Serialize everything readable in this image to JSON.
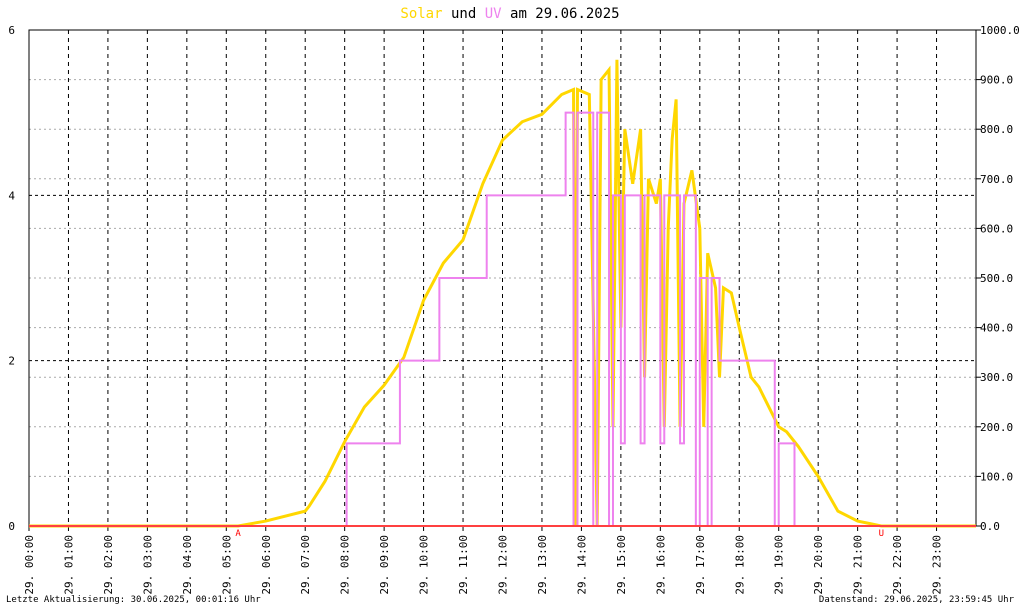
{
  "chart_data": {
    "type": "line",
    "title": {
      "parts": [
        "Solar",
        "und",
        "UV",
        "am 29.06.2025"
      ]
    },
    "xlim": [
      0,
      24
    ],
    "xticks": [
      {
        "value": 0,
        "label": "29. 00:00"
      },
      {
        "value": 1,
        "label": "29. 01:00"
      },
      {
        "value": 2,
        "label": "29. 02:00"
      },
      {
        "value": 3,
        "label": "29. 03:00"
      },
      {
        "value": 4,
        "label": "29. 04:00"
      },
      {
        "value": 5,
        "label": "29. 05:00"
      },
      {
        "value": 6,
        "label": "29. 06:00"
      },
      {
        "value": 7,
        "label": "29. 07:00"
      },
      {
        "value": 8,
        "label": "29. 08:00"
      },
      {
        "value": 9,
        "label": "29. 09:00"
      },
      {
        "value": 10,
        "label": "29. 10:00"
      },
      {
        "value": 11,
        "label": "29. 11:00"
      },
      {
        "value": 12,
        "label": "29. 12:00"
      },
      {
        "value": 13,
        "label": "29. 13:00"
      },
      {
        "value": 14,
        "label": "29. 14:00"
      },
      {
        "value": 15,
        "label": "29. 15:00"
      },
      {
        "value": 16,
        "label": "29. 16:00"
      },
      {
        "value": 17,
        "label": "29. 17:00"
      },
      {
        "value": 18,
        "label": "29. 18:00"
      },
      {
        "value": 19,
        "label": "29. 19:00"
      },
      {
        "value": 20,
        "label": "29. 20:00"
      },
      {
        "value": 21,
        "label": "29. 21:00"
      },
      {
        "value": 22,
        "label": "29. 22:00"
      },
      {
        "value": 23,
        "label": "29. 23:00"
      }
    ],
    "ylim": [
      0,
      6
    ],
    "yticks": [
      0,
      2,
      4,
      6
    ],
    "y2lim": [
      0,
      1000
    ],
    "y2ticks": [
      {
        "value": 0,
        "label": "0.0"
      },
      {
        "value": 100,
        "label": "100.0"
      },
      {
        "value": 200,
        "label": "200.0"
      },
      {
        "value": 300,
        "label": "300.0"
      },
      {
        "value": 400,
        "label": "400.0"
      },
      {
        "value": 500,
        "label": "500.0"
      },
      {
        "value": 600,
        "label": "600.0"
      },
      {
        "value": 700,
        "label": "700.0"
      },
      {
        "value": 800,
        "label": "800.0"
      },
      {
        "value": 900,
        "label": "900.0"
      },
      {
        "value": 1000,
        "label": "1000.0"
      }
    ],
    "grid": true,
    "series": [
      {
        "name": "Solar",
        "color": "#ffd700",
        "axis": "y2",
        "x": [
          0,
          5.3,
          6.0,
          7.0,
          7.1,
          7.5,
          8.0,
          8.5,
          9.0,
          9.5,
          10.0,
          10.5,
          11.0,
          11.5,
          12.0,
          12.5,
          13.0,
          13.5,
          13.8,
          13.85,
          13.9,
          14.2,
          14.4,
          14.5,
          14.7,
          14.8,
          14.9,
          15.0,
          15.1,
          15.3,
          15.5,
          15.6,
          15.7,
          15.9,
          16.0,
          16.1,
          16.2,
          16.3,
          16.4,
          16.5,
          16.6,
          16.8,
          17.0,
          17.1,
          17.2,
          17.4,
          17.5,
          17.6,
          17.8,
          18.0,
          18.3,
          18.5,
          19.0,
          19.2,
          19.5,
          20.0,
          20.5,
          21.0,
          21.3,
          21.6,
          24
        ],
        "values": [
          0,
          0,
          10,
          30,
          40,
          90,
          170,
          240,
          284,
          340,
          455,
          530,
          577,
          690,
          778,
          815,
          830,
          870,
          880,
          0,
          880,
          870,
          0,
          900,
          920,
          200,
          940,
          400,
          800,
          690,
          800,
          300,
          700,
          650,
          700,
          200,
          600,
          780,
          860,
          200,
          650,
          717,
          600,
          200,
          550,
          480,
          300,
          480,
          470,
          400,
          300,
          280,
          200,
          190,
          160,
          100,
          30,
          10,
          5,
          0,
          0
        ]
      },
      {
        "name": "UV",
        "color": "#ee82ee",
        "x": [
          0,
          8.05,
          8.05,
          9.4,
          9.4,
          10.4,
          10.4,
          11.6,
          11.6,
          13.6,
          13.6,
          13.8,
          13.8,
          13.9,
          13.9,
          14.3,
          14.3,
          14.4,
          14.4,
          14.7,
          14.7,
          14.8,
          14.8,
          15.0,
          15.0,
          15.1,
          15.1,
          15.5,
          15.5,
          15.6,
          15.6,
          16.0,
          16.0,
          16.1,
          16.1,
          16.5,
          16.5,
          16.6,
          16.6,
          16.9,
          16.9,
          17.0,
          17.0,
          17.2,
          17.2,
          17.3,
          17.3,
          17.5,
          17.5,
          18.9,
          18.9,
          19.0,
          19.0,
          19.4,
          19.4,
          24
        ],
        "values": [
          0,
          0,
          1,
          1,
          2,
          2,
          3,
          3,
          4,
          4,
          5,
          5,
          0,
          0,
          5,
          5,
          0,
          0,
          5,
          5,
          0,
          0,
          4,
          4,
          1,
          1,
          4,
          4,
          1,
          1,
          4,
          4,
          1,
          1,
          4,
          4,
          1,
          1,
          4,
          4,
          0,
          0,
          3,
          3,
          0,
          0,
          3,
          3,
          2,
          2,
          0,
          0,
          1,
          1,
          0,
          0
        ]
      }
    ],
    "annotations": [
      {
        "text": "A",
        "x": 5.3
      },
      {
        "text": "U",
        "x": 21.6
      }
    ],
    "footer_left": "Letzte Aktualisierung: 30.06.2025, 00:01:16 Uhr",
    "footer_right": "Datenstand: 29.06.2025, 23:59:45 Uhr"
  }
}
